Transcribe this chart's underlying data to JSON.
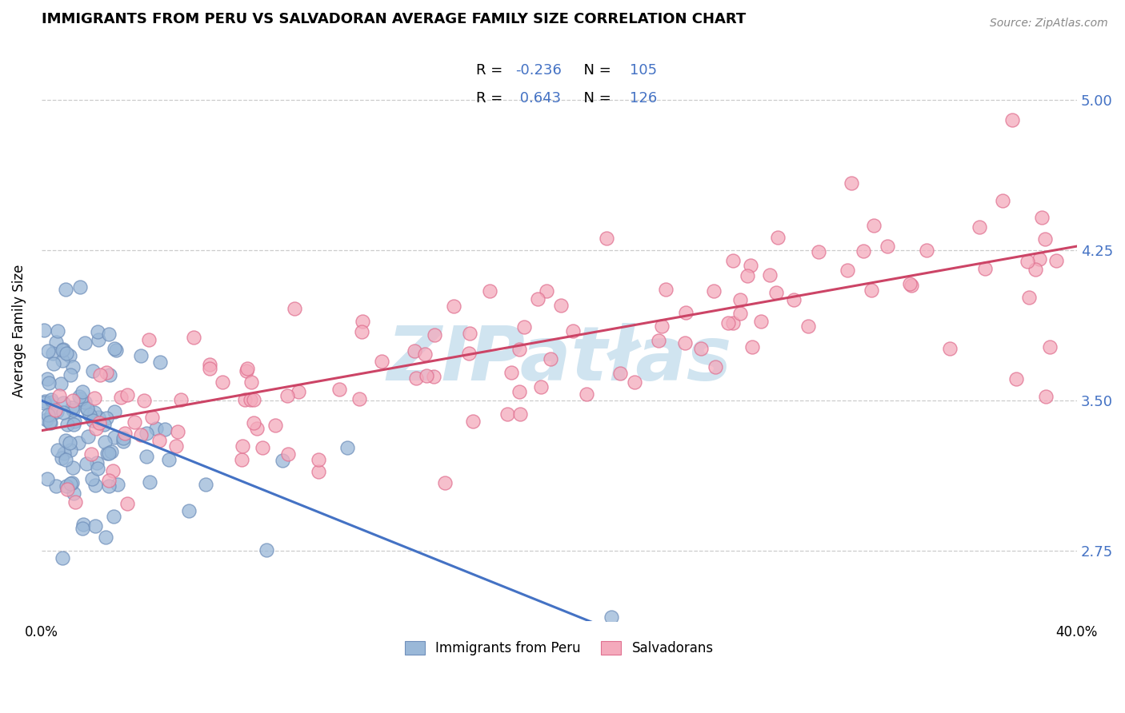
{
  "title": "IMMIGRANTS FROM PERU VS SALVADORAN AVERAGE FAMILY SIZE CORRELATION CHART",
  "source": "Source: ZipAtlas.com",
  "ylabel": "Average Family Size",
  "yticks": [
    2.75,
    3.5,
    4.25,
    5.0
  ],
  "xlim": [
    0.0,
    40.0
  ],
  "ylim": [
    2.4,
    5.3
  ],
  "blue_color": "#9AB8D8",
  "pink_color": "#F4AABC",
  "blue_edge": "#7090BB",
  "pink_edge": "#E07090",
  "trend_blue": "#4472C4",
  "trend_pink": "#CC4466",
  "watermark_color": "#D0E4F0",
  "legend_blue_fill": "#BDD7EE",
  "legend_pink_fill": "#F4AABC",
  "legend_border": "#BBBBBB",
  "yticklabel_color": "#4472C4",
  "blue_solid_end_x": 22.0,
  "blue_intercept": 3.5,
  "blue_slope": -0.052,
  "pink_intercept": 3.35,
  "pink_slope": 0.023
}
